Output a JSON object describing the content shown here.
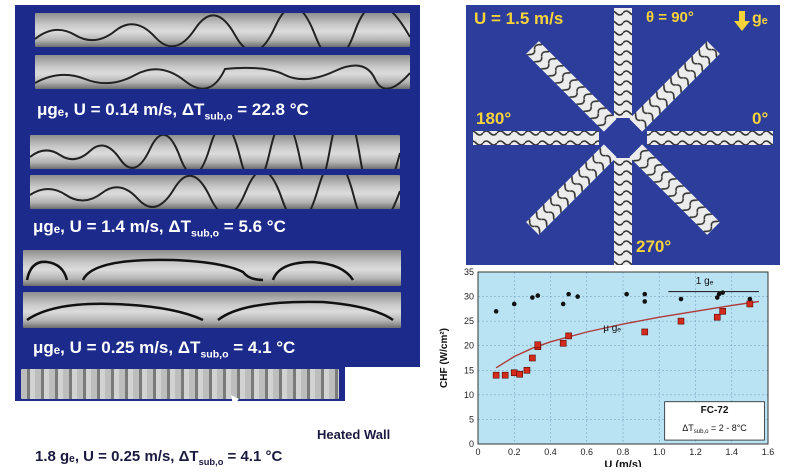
{
  "flow_captions": {
    "row1": "μgₑ, U = 0.14 m/s, ΔT",
    "row1_sub": "sub,o",
    "row1_end": " = 22.8 °C",
    "row2": "μgₑ, U = 1.4 m/s, ΔT",
    "row2_sub": "sub,o",
    "row2_end": " = 5.6 °C",
    "row3": "μgₑ, U = 0.25 m/s, ΔT",
    "row3_sub": "sub,o",
    "row3_end": " = 4.1 °C",
    "row4": "1.8 gₑ, U = 0.25 m/s, ΔT",
    "row4_sub": "sub,o",
    "row4_end": " = 4.1 °C",
    "heated_wall": "Heated Wall"
  },
  "orientation": {
    "velocity": "U = 1.5 m/s",
    "theta": "θ = 90°",
    "gravity": "gₑ",
    "angle_180": "180°",
    "angle_0": "0°",
    "angle_270": "270°"
  },
  "chart_data": {
    "type": "scatter",
    "xlabel": "U (m/s)",
    "ylabel": "CHF (W/cm²)",
    "xlim": [
      0,
      1.6
    ],
    "ylim": [
      0,
      35
    ],
    "xticks": [
      "0",
      "0.2",
      "0.4",
      "0.6",
      "0.8",
      "1.0",
      "1.2",
      "1.4",
      "1.6"
    ],
    "yticks": [
      "0",
      "5",
      "10",
      "15",
      "20",
      "25",
      "30",
      "35"
    ],
    "annotation_1g": "1 gₑ",
    "annotation_ug": "μ gₑ",
    "legend_fluid": "FC-72",
    "legend_dt": "ΔT",
    "legend_dt_sub": "sub,o",
    "legend_dt_end": " = 2 - 8°C",
    "series": [
      {
        "marker": "black-circle",
        "color": "#111111",
        "x": [
          0.1,
          0.2,
          0.3,
          0.33,
          0.47,
          0.5,
          0.55,
          0.82,
          0.92,
          0.92,
          1.12,
          1.32,
          1.33,
          1.35,
          1.5
        ],
        "y": [
          27,
          28.5,
          29.8,
          30.2,
          28.5,
          30.5,
          30,
          30.5,
          29,
          30.5,
          29.5,
          29.8,
          30.5,
          30.8,
          29.5
        ]
      },
      {
        "marker": "red-square",
        "color": "#d42a1c",
        "x": [
          0.1,
          0.15,
          0.2,
          0.23,
          0.27,
          0.3,
          0.33,
          0.33,
          0.47,
          0.5,
          0.92,
          1.12,
          1.32,
          1.35,
          1.5
        ],
        "y": [
          14,
          14,
          14.5,
          14.2,
          15,
          17.5,
          19.8,
          20.2,
          20.5,
          22,
          22.8,
          25,
          25.8,
          27,
          28.5
        ]
      }
    ],
    "trend": {
      "color": "#b03a3a",
      "x": [
        0.1,
        0.2,
        0.3,
        0.4,
        0.6,
        0.8,
        1.0,
        1.2,
        1.4,
        1.55
      ],
      "y": [
        15.5,
        17.8,
        19.5,
        20.8,
        22.8,
        24.4,
        25.8,
        27.0,
        28.2,
        29.0
      ]
    },
    "one_g_line": {
      "x": [
        1.05,
        1.55
      ],
      "y": [
        31,
        31
      ]
    }
  }
}
